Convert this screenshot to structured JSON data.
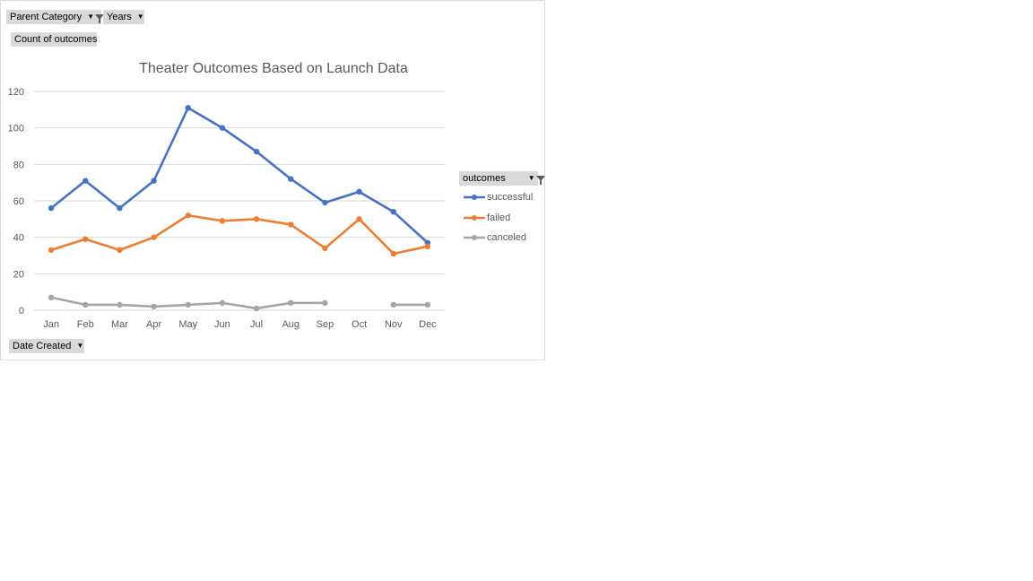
{
  "filters": {
    "parent_category": "Parent Category",
    "years": "Years",
    "count_of_outcomes": "Count of outcomes",
    "date_created": "Date Created",
    "outcomes": "outcomes"
  },
  "chart_data": {
    "type": "line",
    "title": "Theater Outcomes Based on Launch Data",
    "categories": [
      "Jan",
      "Feb",
      "Mar",
      "Apr",
      "May",
      "Jun",
      "Jul",
      "Aug",
      "Sep",
      "Oct",
      "Nov",
      "Dec"
    ],
    "ylim": [
      0,
      120
    ],
    "yticks": [
      "0",
      "20",
      "40",
      "60",
      "80",
      "100",
      "120"
    ],
    "grid": true,
    "legend_position": "right",
    "series": [
      {
        "name": "successful",
        "color": "#4472c4",
        "values": [
          56,
          71,
          56,
          71,
          111,
          100,
          87,
          72,
          59,
          65,
          54,
          37
        ]
      },
      {
        "name": "failed",
        "color": "#ed7d31",
        "values": [
          33,
          39,
          33,
          40,
          52,
          49,
          50,
          47,
          34,
          50,
          31,
          35
        ]
      },
      {
        "name": "canceled",
        "color": "#a5a5a5",
        "values": [
          7,
          3,
          3,
          2,
          3,
          4,
          1,
          4,
          4,
          null,
          3,
          3
        ]
      }
    ]
  }
}
